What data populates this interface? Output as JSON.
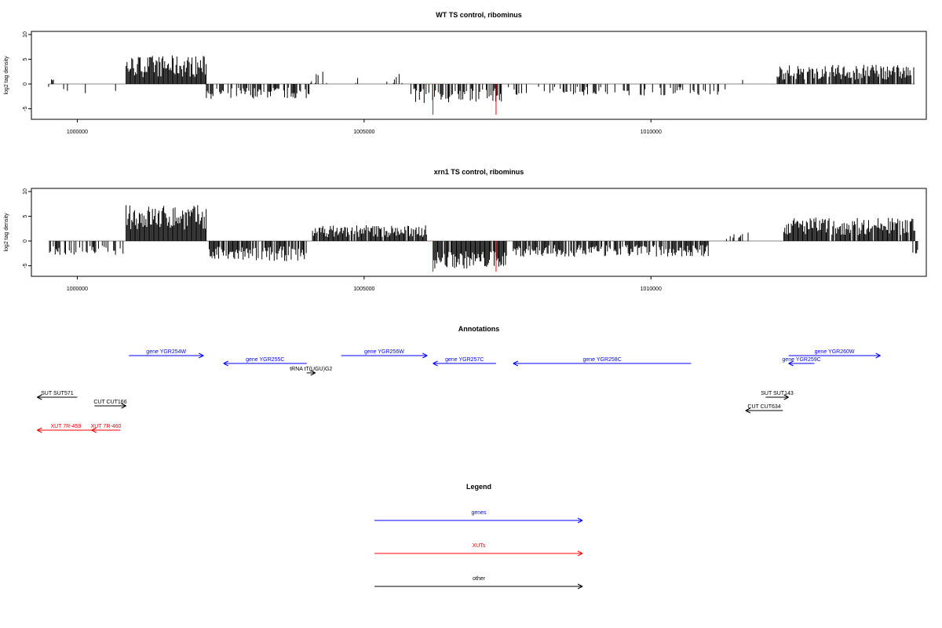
{
  "colors": {
    "gene": "#0000ff",
    "xut": "#ff0000",
    "other": "#000000",
    "highlight": "#ff0000",
    "bar": "#000000",
    "baseline": "#888888"
  },
  "chart_data": [
    {
      "type": "bar",
      "title": "WT TS control, ribominus",
      "ylabel": "log2 tag density",
      "xlim": [
        999200,
        1014800
      ],
      "ylim": [
        -6.5,
        10
      ],
      "yticks": [
        10,
        5,
        0,
        -5
      ],
      "xticks": [
        1000000,
        1005000,
        1010000
      ],
      "highlight_positions": [
        1006200,
        1007300
      ],
      "highlight_values": [
        -6.2,
        -6.2
      ],
      "segments": [
        {
          "start": 999500,
          "end": 1000200,
          "mean": -1.4,
          "amp": 1.0,
          "sign": -1,
          "density": 0.15
        },
        {
          "start": 999550,
          "end": 999600,
          "mean": 0.8,
          "amp": 0.2,
          "sign": 1,
          "density": 0.6
        },
        {
          "start": 1000650,
          "end": 1000850,
          "mean": -1.3,
          "amp": 0.5,
          "sign": -1,
          "density": 0.2
        },
        {
          "start": 1000850,
          "end": 1002250,
          "mean": 3.6,
          "amp": 2.2,
          "sign": 1,
          "density": 1.0
        },
        {
          "start": 1002250,
          "end": 1004050,
          "mean": -1.8,
          "amp": 1.2,
          "sign": -1,
          "density": 0.7
        },
        {
          "start": 1004050,
          "end": 1005800,
          "mean": 1.0,
          "amp": 1.5,
          "sign": 1,
          "density": 0.15
        },
        {
          "start": 1005800,
          "end": 1007400,
          "mean": -2.4,
          "amp": 1.5,
          "sign": -1,
          "density": 0.6
        },
        {
          "start": 1007500,
          "end": 1011300,
          "mean": -1.4,
          "amp": 0.9,
          "sign": -1,
          "density": 0.35
        },
        {
          "start": 1011500,
          "end": 1011600,
          "mean": 0.6,
          "amp": 0.3,
          "sign": 1,
          "density": 0.5
        },
        {
          "start": 1012200,
          "end": 1014600,
          "mean": 2.4,
          "amp": 1.5,
          "sign": 1,
          "density": 0.9
        }
      ]
    },
    {
      "type": "bar",
      "title": "xrn1 TS control, ribominus",
      "ylabel": "log2 tag density",
      "xlim": [
        999200,
        1014800
      ],
      "ylim": [
        -6.5,
        10
      ],
      "yticks": [
        10,
        5,
        0,
        -5
      ],
      "xticks": [
        1000000,
        1005000,
        1010000
      ],
      "highlight_positions": [
        1006200,
        1007300
      ],
      "highlight_values": [
        -6.2,
        -6.2
      ],
      "segments": [
        {
          "start": 999500,
          "end": 1000800,
          "mean": -1.8,
          "amp": 1.0,
          "sign": -1,
          "density": 0.45
        },
        {
          "start": 1000850,
          "end": 1002250,
          "mean": 4.8,
          "amp": 2.5,
          "sign": 1,
          "density": 1.0
        },
        {
          "start": 1002300,
          "end": 1004000,
          "mean": -2.6,
          "amp": 1.5,
          "sign": -1,
          "density": 0.85
        },
        {
          "start": 1004100,
          "end": 1006100,
          "mean": 2.0,
          "amp": 1.2,
          "sign": 1,
          "density": 0.9
        },
        {
          "start": 1006200,
          "end": 1007500,
          "mean": -3.8,
          "amp": 1.8,
          "sign": -1,
          "density": 0.95
        },
        {
          "start": 1007600,
          "end": 1011000,
          "mean": -2.0,
          "amp": 1.2,
          "sign": -1,
          "density": 0.75
        },
        {
          "start": 1011300,
          "end": 1011700,
          "mean": 1.0,
          "amp": 0.8,
          "sign": 1,
          "density": 0.2
        },
        {
          "start": 1012300,
          "end": 1014600,
          "mean": 3.0,
          "amp": 1.8,
          "sign": 1,
          "density": 0.95
        },
        {
          "start": 1014550,
          "end": 1014650,
          "mean": -2.0,
          "amp": 0.6,
          "sign": -1,
          "density": 0.6
        }
      ]
    }
  ],
  "annotations": {
    "title": "Annotations",
    "features": [
      {
        "label": "gene YGR254W",
        "type": "gene",
        "start": 1000900,
        "end": 1002200,
        "strand": "+",
        "row": 0
      },
      {
        "label": "gene YGR255C",
        "type": "gene",
        "start": 1002550,
        "end": 1004000,
        "strand": "-",
        "row": 1
      },
      {
        "label": "tRNA tT(UGU)G2",
        "type": "other",
        "start": 1004000,
        "end": 1004150,
        "strand": "+",
        "row": 2
      },
      {
        "label": "gene YGR256W",
        "type": "gene",
        "start": 1004600,
        "end": 1006100,
        "strand": "+",
        "row": 0
      },
      {
        "label": "gene YGR257C",
        "type": "gene",
        "start": 1006200,
        "end": 1007300,
        "strand": "-",
        "row": 1
      },
      {
        "label": "gene YGR258C",
        "type": "gene",
        "start": 1007600,
        "end": 1010700,
        "strand": "-",
        "row": 1
      },
      {
        "label": "gene YGR259C",
        "type": "gene",
        "start": 1012400,
        "end": 1012850,
        "strand": "-",
        "row": 1
      },
      {
        "label": "gene YGR260W",
        "type": "gene",
        "start": 1012400,
        "end": 1014000,
        "strand": "+",
        "row": 0
      },
      {
        "label": "SUT SUT571",
        "type": "other",
        "start": 999300,
        "end": 1000000,
        "strand": "-",
        "row": 3
      },
      {
        "label": "CUT CUT166",
        "type": "other",
        "start": 1000300,
        "end": 1000850,
        "strand": "+",
        "row": 4
      },
      {
        "label": "SUT SUT143",
        "type": "other",
        "start": 1012000,
        "end": 1012400,
        "strand": "+",
        "row": 3
      },
      {
        "label": "CUT CUT634",
        "type": "other",
        "start": 1011650,
        "end": 1012300,
        "strand": "-",
        "row": 5
      },
      {
        "label": "XUT 7R-459",
        "type": "xut",
        "start": 999300,
        "end": 1000300,
        "strand": "-",
        "row": 6
      },
      {
        "label": "XUT 7R-460",
        "type": "xut",
        "start": 1000250,
        "end": 1000750,
        "strand": "-",
        "row": 6
      }
    ]
  },
  "legend": {
    "title": "Legend",
    "entries": [
      {
        "label": "genes",
        "type": "gene"
      },
      {
        "label": "XUTs",
        "type": "xut"
      },
      {
        "label": "other",
        "type": "other"
      }
    ]
  }
}
